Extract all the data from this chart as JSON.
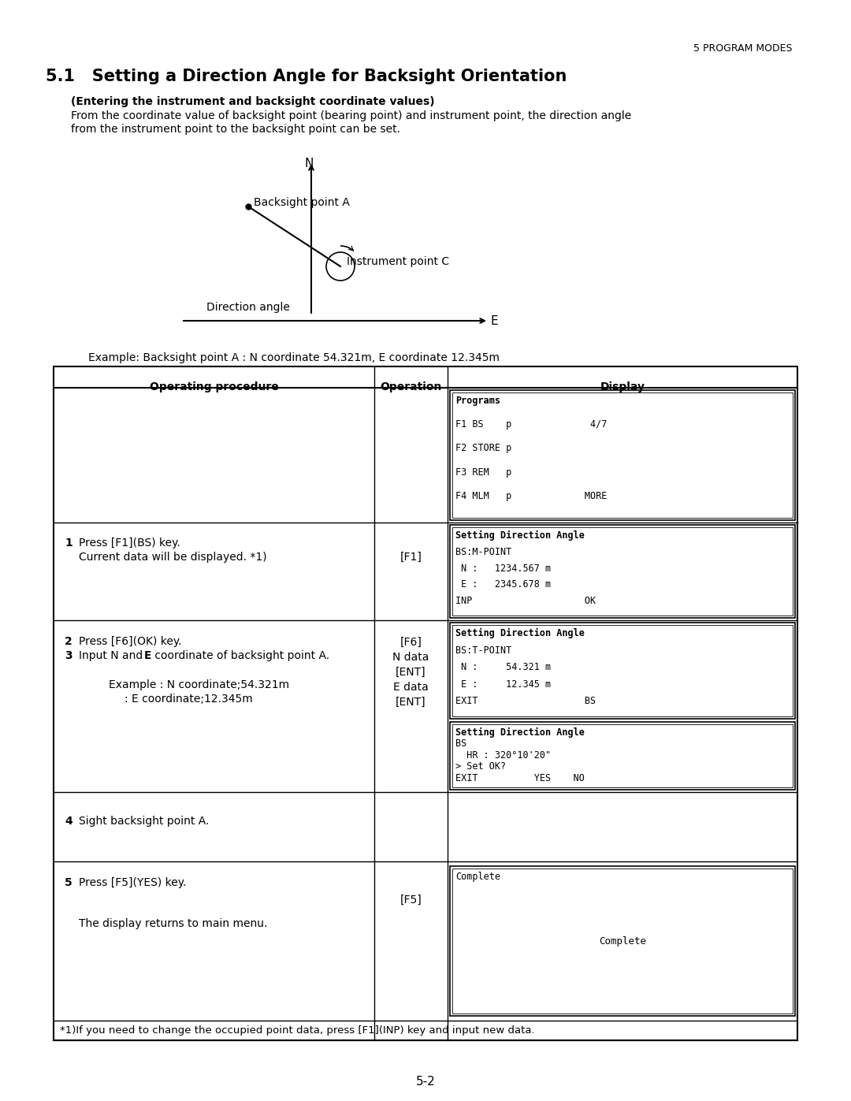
{
  "page_header_right": "5 PROGRAM MODES",
  "title": "5.1   Setting a Direction Angle for Backsight Orientation",
  "subtitle_bold": "(Entering the instrument and backsight coordinate values)",
  "subtitle_text": "From the coordinate value of backsight point (bearing point) and instrument point, the direction angle\nfrom the instrument point to the backsight point can be set.",
  "example_text": "Example: Backsight point A : N coordinate 54.321m, E coordinate 12.345m",
  "table_headers": [
    "Operating procedure",
    "Operation",
    "Display"
  ],
  "display_box1": [
    "Programs",
    "F1 BS    p              4/7",
    "F2 STORE p",
    "F3 REM   p",
    "F4 MLM   p             MORE"
  ],
  "display_box2": [
    "Setting Direction Angle",
    "BS:M-POINT",
    " N :   1234.567 m",
    " E :   2345.678 m",
    "INP                    OK"
  ],
  "display_box3": [
    "Setting Direction Angle",
    "BS:T-POINT",
    " N :     54.321 m",
    " E :     12.345 m",
    "EXIT                   BS"
  ],
  "display_box4": [
    "Setting Direction Angle",
    "BS",
    "  HR : 320°10'20\"",
    "> Set OK?",
    "EXIT          YES    NO"
  ],
  "display_box5_text": "Complete",
  "footnote": "*1)If you need to change the occupied point data, press [F1](INP) key and input new data.",
  "page_number": "5-2",
  "bg_color": "#ffffff"
}
